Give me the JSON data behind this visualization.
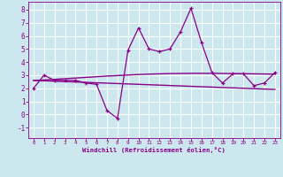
{
  "x": [
    0,
    1,
    2,
    3,
    4,
    5,
    6,
    7,
    8,
    9,
    10,
    11,
    12,
    13,
    14,
    15,
    16,
    17,
    18,
    19,
    20,
    21,
    22,
    23
  ],
  "y_line": [
    2.0,
    3.0,
    2.6,
    2.6,
    2.6,
    2.4,
    2.3,
    0.3,
    -0.3,
    4.9,
    6.6,
    5.0,
    4.8,
    5.0,
    6.3,
    8.1,
    5.5,
    3.2,
    2.4,
    3.1,
    3.1,
    2.2,
    2.4,
    3.2
  ],
  "y_trend1": [
    2.6,
    2.63,
    2.68,
    2.73,
    2.78,
    2.83,
    2.88,
    2.93,
    2.97,
    3.01,
    3.05,
    3.08,
    3.1,
    3.12,
    3.13,
    3.14,
    3.14,
    3.14,
    3.13,
    3.12,
    3.11,
    3.1,
    3.09,
    3.08
  ],
  "y_trend2": [
    2.6,
    2.57,
    2.54,
    2.51,
    2.48,
    2.45,
    2.42,
    2.39,
    2.36,
    2.33,
    2.3,
    2.27,
    2.24,
    2.21,
    2.18,
    2.15,
    2.12,
    2.09,
    2.06,
    2.03,
    2.0,
    1.97,
    1.94,
    1.91
  ],
  "line_color": "#880088",
  "bg_color": "#cce8ee",
  "grid_color": "#ffffff",
  "yticks": [
    -1,
    0,
    1,
    2,
    3,
    4,
    5,
    6,
    7,
    8
  ],
  "xlabel": "Windchill (Refroidissement éolien,°C)",
  "ylim": [
    -1.8,
    8.6
  ],
  "xlim": [
    -0.5,
    23.5
  ]
}
